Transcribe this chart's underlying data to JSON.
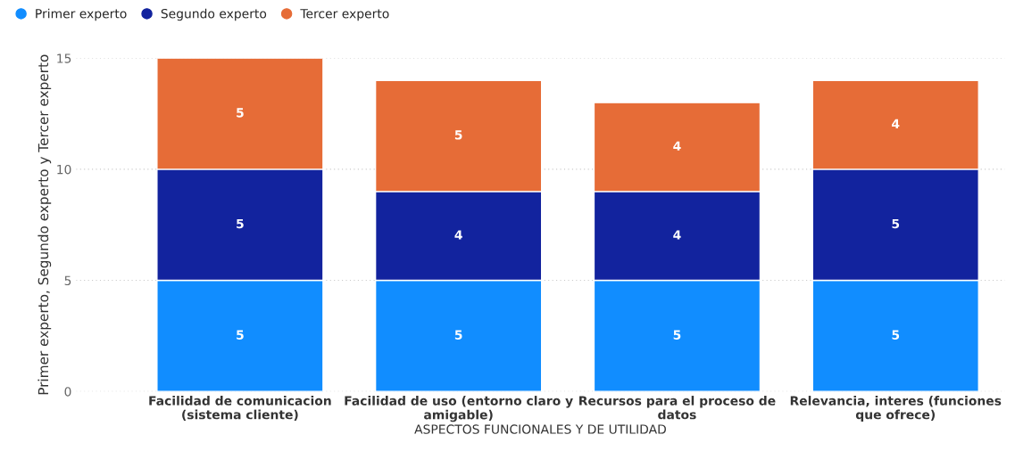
{
  "chart_data": {
    "type": "bar",
    "stacked": true,
    "xlabel": "ASPECTOS FUNCIONALES Y DE UTILIDAD",
    "ylabel": "Primer experto, Segundo experto y Tercer experto",
    "categories": [
      "Facilidad de comunicacion\n(sistema cliente)",
      "Facilidad de uso (entorno claro y\namigable)",
      "Recursos para el proceso de\ndatos",
      "Relevancia, interes (funciones\nque ofrece)"
    ],
    "series": [
      {
        "name": "Primer experto",
        "color": "#118dff",
        "values": [
          5,
          5,
          5,
          5
        ]
      },
      {
        "name": "Segundo experto",
        "color": "#12239e",
        "values": [
          5,
          4,
          4,
          5
        ]
      },
      {
        "name": "Tercer experto",
        "color": "#e66c37",
        "values": [
          5,
          5,
          4,
          4
        ]
      }
    ],
    "ylim": [
      0,
      15
    ],
    "yticks": [
      0,
      5,
      10,
      15
    ],
    "grid": "y",
    "legend": "top left",
    "data_labels": true
  }
}
